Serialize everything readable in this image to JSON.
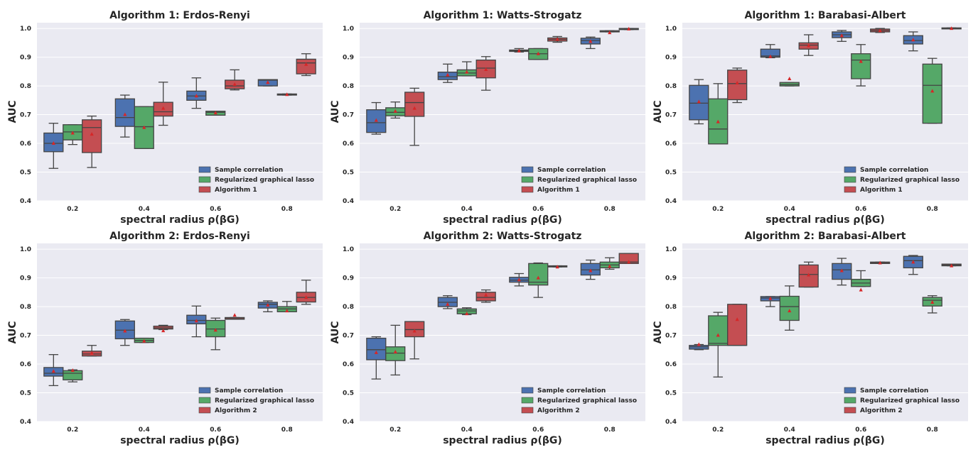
{
  "colors": {
    "Sample correlation": "#4c72b0",
    "Regularized graphical lasso": "#55a868",
    "Algorithm": "#c44e52",
    "plot_bg": "#eaeaf2",
    "grid": "#ffffff",
    "whisker": "#444444",
    "mean_marker": "#d62728"
  },
  "chart_data": [
    {
      "type": "box",
      "title": "Algorithm 1: Erdos-Renyi",
      "xlabel": "spectral radius ρ(βG)",
      "ylabel": "AUC",
      "ylim": [
        0.4,
        1.02
      ],
      "yticks": [
        "0.4",
        "0.5",
        "0.6",
        "0.7",
        "0.8",
        "0.9",
        "1.0"
      ],
      "categories": [
        "0.2",
        "0.4",
        "0.6",
        "0.8"
      ],
      "legend": [
        "Sample correlation",
        "Regularized graphical lasso",
        "Algorithm 1"
      ],
      "series": [
        {
          "name": "Sample correlation",
          "boxes": [
            {
              "wl": 0.513,
              "q1": 0.571,
              "med": 0.6,
              "q3": 0.636,
              "wh": 0.67,
              "mean": 0.6
            },
            {
              "wl": 0.622,
              "q1": 0.659,
              "med": 0.69,
              "q3": 0.755,
              "wh": 0.768,
              "mean": 0.7
            },
            {
              "wl": 0.722,
              "q1": 0.75,
              "med": 0.765,
              "q3": 0.782,
              "wh": 0.828,
              "mean": 0.765
            },
            {
              "wl": 0.8,
              "q1": 0.8,
              "med": 0.82,
              "q3": 0.822,
              "wh": 0.822,
              "mean": 0.812
            }
          ]
        },
        {
          "name": "Regularized graphical lasso",
          "boxes": [
            {
              "wl": 0.596,
              "q1": 0.612,
              "med": 0.64,
              "q3": 0.665,
              "wh": 0.665,
              "mean": 0.636
            },
            {
              "wl": 0.582,
              "q1": 0.582,
              "med": 0.658,
              "q3": 0.728,
              "wh": 0.728,
              "mean": 0.655
            },
            {
              "wl": 0.698,
              "q1": 0.698,
              "med": 0.708,
              "q3": 0.712,
              "wh": 0.712,
              "mean": 0.706
            },
            {
              "wl": 0.768,
              "q1": 0.768,
              "med": 0.77,
              "q3": 0.772,
              "wh": 0.772,
              "mean": 0.77
            }
          ]
        },
        {
          "name": "Algorithm 1",
          "boxes": [
            {
              "wl": 0.516,
              "q1": 0.568,
              "med": 0.655,
              "q3": 0.682,
              "wh": 0.695,
              "mean": 0.632
            },
            {
              "wl": 0.663,
              "q1": 0.695,
              "med": 0.71,
              "q3": 0.743,
              "wh": 0.813,
              "mean": 0.722
            },
            {
              "wl": 0.786,
              "q1": 0.79,
              "med": 0.8,
              "q3": 0.82,
              "wh": 0.856,
              "mean": 0.805
            },
            {
              "wl": 0.836,
              "q1": 0.842,
              "med": 0.88,
              "q3": 0.893,
              "wh": 0.912,
              "mean": 0.875
            }
          ]
        }
      ]
    },
    {
      "type": "box",
      "title": "Algorithm 1: Watts-Strogatz",
      "xlabel": "spectral radius ρ(βG)",
      "ylabel": "AUC",
      "ylim": [
        0.4,
        1.02
      ],
      "yticks": [
        "0.4",
        "0.5",
        "0.6",
        "0.7",
        "0.8",
        "0.9",
        "1.0"
      ],
      "categories": [
        "0.2",
        "0.4",
        "0.6",
        "0.8"
      ],
      "legend": [
        "Sample correlation",
        "Regularized graphical lasso",
        "Algorithm 1"
      ],
      "series": [
        {
          "name": "Sample correlation",
          "boxes": [
            {
              "wl": 0.632,
              "q1": 0.638,
              "med": 0.672,
              "q3": 0.717,
              "wh": 0.742,
              "mean": 0.68
            },
            {
              "wl": 0.812,
              "q1": 0.822,
              "med": 0.832,
              "q3": 0.848,
              "wh": 0.876,
              "mean": 0.838
            },
            {
              "wl": 0.918,
              "q1": 0.92,
              "med": 0.922,
              "q3": 0.925,
              "wh": 0.93,
              "mean": 0.922
            },
            {
              "wl": 0.93,
              "q1": 0.946,
              "med": 0.958,
              "q3": 0.966,
              "wh": 0.97,
              "mean": 0.955
            }
          ]
        },
        {
          "name": "Regularized graphical lasso",
          "boxes": [
            {
              "wl": 0.688,
              "q1": 0.696,
              "med": 0.708,
              "q3": 0.724,
              "wh": 0.744,
              "mean": 0.712
            },
            {
              "wl": 0.835,
              "q1": 0.835,
              "med": 0.845,
              "q3": 0.856,
              "wh": 0.884,
              "mean": 0.848
            },
            {
              "wl": 0.892,
              "q1": 0.892,
              "med": 0.912,
              "q3": 0.93,
              "wh": 0.93,
              "mean": 0.912
            },
            {
              "wl": 0.988,
              "q1": 0.988,
              "med": 0.99,
              "q3": 0.992,
              "wh": 0.992,
              "mean": 0.985
            }
          ]
        },
        {
          "name": "Algorithm 1",
          "boxes": [
            {
              "wl": 0.593,
              "q1": 0.694,
              "med": 0.742,
              "q3": 0.778,
              "wh": 0.792,
              "mean": 0.722
            },
            {
              "wl": 0.785,
              "q1": 0.828,
              "med": 0.862,
              "q3": 0.89,
              "wh": 0.902,
              "mean": 0.857
            },
            {
              "wl": 0.952,
              "q1": 0.956,
              "med": 0.962,
              "q3": 0.967,
              "wh": 0.972,
              "mean": 0.962
            },
            {
              "wl": 0.996,
              "q1": 0.996,
              "med": 0.998,
              "q3": 1.0,
              "wh": 1.0,
              "mean": 0.998
            }
          ]
        }
      ]
    },
    {
      "type": "box",
      "title": "Algorithm 1: Barabasi-Albert",
      "xlabel": "spectral radius ρ(βG)",
      "ylabel": "AUC",
      "ylim": [
        0.4,
        1.02
      ],
      "yticks": [
        "0.4",
        "0.5",
        "0.6",
        "0.7",
        "0.8",
        "0.9",
        "1.0"
      ],
      "categories": [
        "0.2",
        "0.4",
        "0.6",
        "0.8"
      ],
      "legend": [
        "Sample correlation",
        "Regularized graphical lasso",
        "Algorithm 1"
      ],
      "series": [
        {
          "name": "Sample correlation",
          "boxes": [
            {
              "wl": 0.668,
              "q1": 0.682,
              "med": 0.74,
              "q3": 0.802,
              "wh": 0.822,
              "mean": 0.745
            },
            {
              "wl": 0.898,
              "q1": 0.9,
              "med": 0.904,
              "q3": 0.928,
              "wh": 0.944,
              "mean": 0.902
            },
            {
              "wl": 0.955,
              "q1": 0.968,
              "med": 0.978,
              "q3": 0.988,
              "wh": 0.993,
              "mean": 0.975
            },
            {
              "wl": 0.922,
              "q1": 0.946,
              "med": 0.958,
              "q3": 0.975,
              "wh": 0.988,
              "mean": 0.96
            }
          ]
        },
        {
          "name": "Regularized graphical lasso",
          "boxes": [
            {
              "wl": 0.598,
              "q1": 0.598,
              "med": 0.65,
              "q3": 0.755,
              "wh": 0.808,
              "mean": 0.675
            },
            {
              "wl": 0.8,
              "q1": 0.8,
              "med": 0.805,
              "q3": 0.812,
              "wh": 0.812,
              "mean": 0.825
            },
            {
              "wl": 0.8,
              "q1": 0.825,
              "med": 0.89,
              "q3": 0.912,
              "wh": 0.944,
              "mean": 0.885
            },
            {
              "wl": 0.67,
              "q1": 0.67,
              "med": 0.802,
              "q3": 0.876,
              "wh": 0.896,
              "mean": 0.782
            }
          ]
        },
        {
          "name": "Algorithm 1",
          "boxes": [
            {
              "wl": 0.742,
              "q1": 0.752,
              "med": 0.808,
              "q3": 0.855,
              "wh": 0.862,
              "mean": 0.81
            },
            {
              "wl": 0.906,
              "q1": 0.928,
              "med": 0.942,
              "q3": 0.95,
              "wh": 0.978,
              "mean": 0.94
            },
            {
              "wl": 0.986,
              "q1": 0.988,
              "med": 0.993,
              "q3": 0.998,
              "wh": 1.0,
              "mean": 0.992
            },
            {
              "wl": 1.0,
              "q1": 1.0,
              "med": 1.0,
              "q3": 1.002,
              "wh": 1.002,
              "mean": 1.0
            }
          ]
        }
      ]
    },
    {
      "type": "box",
      "title": "Algorithm 2: Erdos-Renyi",
      "xlabel": "spectral radius ρ(βG)",
      "ylabel": "AUC",
      "ylim": [
        0.4,
        1.02
      ],
      "yticks": [
        "0.4",
        "0.5",
        "0.6",
        "0.7",
        "0.8",
        "0.9",
        "1.0"
      ],
      "categories": [
        "0.2",
        "0.4",
        "0.6",
        "0.8"
      ],
      "legend": [
        "Sample correlation",
        "Regularized graphical lasso",
        "Algorithm 2"
      ],
      "series": [
        {
          "name": "Sample correlation",
          "boxes": [
            {
              "wl": 0.525,
              "q1": 0.558,
              "med": 0.568,
              "q3": 0.588,
              "wh": 0.633,
              "mean": 0.575
            },
            {
              "wl": 0.665,
              "q1": 0.688,
              "med": 0.718,
              "q3": 0.75,
              "wh": 0.755,
              "mean": 0.715
            },
            {
              "wl": 0.695,
              "q1": 0.74,
              "med": 0.752,
              "q3": 0.77,
              "wh": 0.802,
              "mean": 0.75
            },
            {
              "wl": 0.782,
              "q1": 0.795,
              "med": 0.808,
              "q3": 0.815,
              "wh": 0.82,
              "mean": 0.805
            }
          ]
        },
        {
          "name": "Regularized graphical lasso",
          "boxes": [
            {
              "wl": 0.538,
              "q1": 0.545,
              "med": 0.568,
              "q3": 0.577,
              "wh": 0.58,
              "mean": 0.578
            },
            {
              "wl": 0.675,
              "q1": 0.675,
              "med": 0.682,
              "q3": 0.69,
              "wh": 0.69,
              "mean": 0.68
            },
            {
              "wl": 0.65,
              "q1": 0.695,
              "med": 0.722,
              "q3": 0.752,
              "wh": 0.76,
              "mean": 0.718
            },
            {
              "wl": 0.782,
              "q1": 0.782,
              "med": 0.792,
              "q3": 0.8,
              "wh": 0.818,
              "mean": 0.785
            }
          ]
        },
        {
          "name": "Algorithm 2",
          "boxes": [
            {
              "wl": 0.628,
              "q1": 0.628,
              "med": 0.635,
              "q3": 0.645,
              "wh": 0.665,
              "mean": 0.638
            },
            {
              "wl": 0.72,
              "q1": 0.722,
              "med": 0.726,
              "q3": 0.732,
              "wh": 0.735,
              "mean": 0.716
            },
            {
              "wl": 0.756,
              "q1": 0.756,
              "med": 0.758,
              "q3": 0.762,
              "wh": 0.762,
              "mean": 0.77
            },
            {
              "wl": 0.808,
              "q1": 0.816,
              "med": 0.832,
              "q3": 0.85,
              "wh": 0.892,
              "mean": 0.832
            }
          ]
        }
      ]
    },
    {
      "type": "box",
      "title": "Algorithm 2: Watts-Strogatz",
      "xlabel": "spectral radius ρ(βG)",
      "ylabel": "AUC",
      "ylim": [
        0.4,
        1.02
      ],
      "yticks": [
        "0.4",
        "0.5",
        "0.6",
        "0.7",
        "0.8",
        "0.9",
        "1.0"
      ],
      "categories": [
        "0.2",
        "0.4",
        "0.6",
        "0.8"
      ],
      "legend": [
        "Sample correlation",
        "Regularized graphical lasso",
        "Algorithm 2"
      ],
      "series": [
        {
          "name": "Sample correlation",
          "boxes": [
            {
              "wl": 0.548,
              "q1": 0.615,
              "med": 0.65,
              "q3": 0.69,
              "wh": 0.695,
              "mean": 0.64
            },
            {
              "wl": 0.793,
              "q1": 0.8,
              "med": 0.815,
              "q3": 0.832,
              "wh": 0.838,
              "mean": 0.808
            },
            {
              "wl": 0.872,
              "q1": 0.885,
              "med": 0.892,
              "q3": 0.902,
              "wh": 0.915,
              "mean": 0.893
            },
            {
              "wl": 0.895,
              "q1": 0.91,
              "med": 0.928,
              "q3": 0.95,
              "wh": 0.962,
              "mean": 0.925
            }
          ]
        },
        {
          "name": "Regularized graphical lasso",
          "boxes": [
            {
              "wl": 0.562,
              "q1": 0.612,
              "med": 0.638,
              "q3": 0.66,
              "wh": 0.735,
              "mean": 0.642
            },
            {
              "wl": 0.772,
              "q1": 0.775,
              "med": 0.785,
              "q3": 0.792,
              "wh": 0.796,
              "mean": 0.775
            },
            {
              "wl": 0.832,
              "q1": 0.875,
              "med": 0.885,
              "q3": 0.95,
              "wh": 0.952,
              "mean": 0.9
            },
            {
              "wl": 0.93,
              "q1": 0.935,
              "med": 0.945,
              "q3": 0.955,
              "wh": 0.97,
              "mean": 0.94
            }
          ]
        },
        {
          "name": "Algorithm 2",
          "boxes": [
            {
              "wl": 0.618,
              "q1": 0.695,
              "med": 0.72,
              "q3": 0.748,
              "wh": 0.748,
              "mean": 0.715
            },
            {
              "wl": 0.815,
              "q1": 0.82,
              "med": 0.832,
              "q3": 0.85,
              "wh": 0.858,
              "mean": 0.84
            },
            {
              "wl": 0.938,
              "q1": 0.938,
              "med": 0.94,
              "q3": 0.942,
              "wh": 0.942,
              "mean": 0.938
            },
            {
              "wl": 0.95,
              "q1": 0.95,
              "med": 0.955,
              "q3": 0.985,
              "wh": 0.985,
              "mean": 0.955
            }
          ]
        }
      ]
    },
    {
      "type": "box",
      "title": "Algorithm 2: Barabasi-Albert",
      "xlabel": "spectral radius ρ(βG)",
      "ylabel": "AUC",
      "ylim": [
        0.4,
        1.02
      ],
      "yticks": [
        "0.4",
        "0.5",
        "0.6",
        "0.7",
        "0.8",
        "0.9",
        "1.0"
      ],
      "categories": [
        "0.2",
        "0.4",
        "0.6",
        "0.8"
      ],
      "legend": [
        "Sample correlation",
        "Regularized graphical lasso",
        "Algorithm 2"
      ],
      "series": [
        {
          "name": "Sample correlation",
          "boxes": [
            {
              "wl": 0.65,
              "q1": 0.652,
              "med": 0.66,
              "q3": 0.665,
              "wh": 0.668,
              "mean": 0.668
            },
            {
              "wl": 0.8,
              "q1": 0.82,
              "med": 0.83,
              "q3": 0.835,
              "wh": 0.835,
              "mean": 0.828
            },
            {
              "wl": 0.875,
              "q1": 0.895,
              "med": 0.928,
              "q3": 0.95,
              "wh": 0.968,
              "mean": 0.925
            },
            {
              "wl": 0.912,
              "q1": 0.935,
              "med": 0.96,
              "q3": 0.975,
              "wh": 0.978,
              "mean": 0.955
            }
          ]
        },
        {
          "name": "Regularized graphical lasso",
          "boxes": [
            {
              "wl": 0.555,
              "q1": 0.665,
              "med": 0.672,
              "q3": 0.768,
              "wh": 0.78,
              "mean": 0.7
            },
            {
              "wl": 0.718,
              "q1": 0.752,
              "med": 0.8,
              "q3": 0.836,
              "wh": 0.872,
              "mean": 0.785
            },
            {
              "wl": 0.87,
              "q1": 0.87,
              "med": 0.882,
              "q3": 0.895,
              "wh": 0.925,
              "mean": 0.858
            },
            {
              "wl": 0.778,
              "q1": 0.802,
              "med": 0.822,
              "q3": 0.832,
              "wh": 0.838,
              "mean": 0.815
            }
          ]
        },
        {
          "name": "Algorithm 2",
          "boxes": [
            {
              "wl": 0.665,
              "q1": 0.665,
              "med": 0.665,
              "q3": 0.808,
              "wh": 0.808,
              "mean": 0.755
            },
            {
              "wl": 0.868,
              "q1": 0.868,
              "med": 0.912,
              "q3": 0.945,
              "wh": 0.955,
              "mean": 0.91
            },
            {
              "wl": 0.95,
              "q1": 0.95,
              "med": 0.953,
              "q3": 0.955,
              "wh": 0.955,
              "mean": 0.952
            },
            {
              "wl": 0.942,
              "q1": 0.942,
              "med": 0.945,
              "q3": 0.948,
              "wh": 0.948,
              "mean": 0.942
            }
          ]
        }
      ]
    }
  ]
}
